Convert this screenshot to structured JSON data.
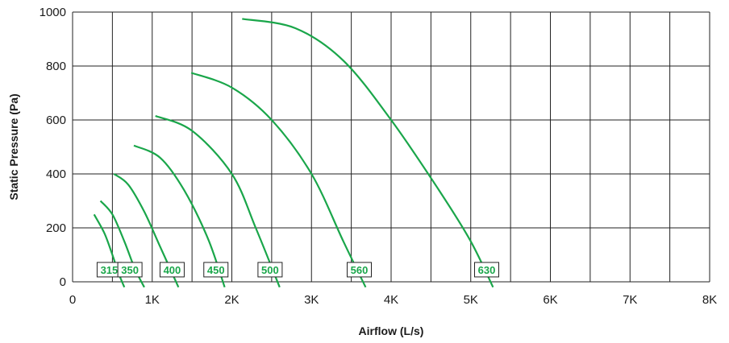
{
  "chart_data": {
    "type": "line",
    "xlabel": "Airflow (L/s)",
    "ylabel": "Static Pressure (Pa)",
    "xlim": [
      0,
      8000
    ],
    "ylim": [
      0,
      1000
    ],
    "x_ticks": [
      0,
      1000,
      2000,
      3000,
      4000,
      5000,
      6000,
      7000,
      8000
    ],
    "x_tick_labels": [
      "0",
      "1K",
      "2K",
      "3K",
      "4K",
      "5K",
      "6K",
      "7K",
      "8K"
    ],
    "y_ticks": [
      0,
      200,
      400,
      600,
      800,
      1000
    ],
    "y_tick_labels": [
      "0",
      "200",
      "400",
      "600",
      "800",
      "1000"
    ],
    "grid": true,
    "legend": "none",
    "series_color": "#1aa64a",
    "series": [
      {
        "name": "315",
        "x": [
          270,
          400,
          500,
          580,
          650
        ],
        "y": [
          250,
          180,
          100,
          30,
          -20
        ],
        "label_at": [
          460,
          45
        ]
      },
      {
        "name": "350",
        "x": [
          350,
          500,
          650,
          780,
          900
        ],
        "y": [
          300,
          250,
          150,
          50,
          -20
        ],
        "label_at": [
          720,
          45
        ]
      },
      {
        "name": "400",
        "x": [
          520,
          700,
          900,
          1100,
          1330
        ],
        "y": [
          400,
          360,
          260,
          130,
          -20
        ],
        "label_at": [
          1250,
          45
        ]
      },
      {
        "name": "450",
        "x": [
          770,
          1100,
          1400,
          1700,
          1910
        ],
        "y": [
          505,
          460,
          340,
          160,
          -20
        ],
        "label_at": [
          1800,
          45
        ]
      },
      {
        "name": "500",
        "x": [
          1040,
          1500,
          2000,
          2300,
          2600
        ],
        "y": [
          615,
          560,
          400,
          200,
          -20
        ],
        "label_at": [
          2480,
          45
        ]
      },
      {
        "name": "560",
        "x": [
          1490,
          2000,
          2500,
          3000,
          3400,
          3680
        ],
        "y": [
          775,
          720,
          600,
          400,
          150,
          -20
        ],
        "label_at": [
          3600,
          45
        ]
      },
      {
        "name": "630",
        "x": [
          2130,
          2800,
          3400,
          4000,
          4600,
          5000,
          5280
        ],
        "y": [
          975,
          940,
          820,
          600,
          340,
          150,
          -20
        ],
        "label_at": [
          5200,
          45
        ]
      }
    ]
  }
}
